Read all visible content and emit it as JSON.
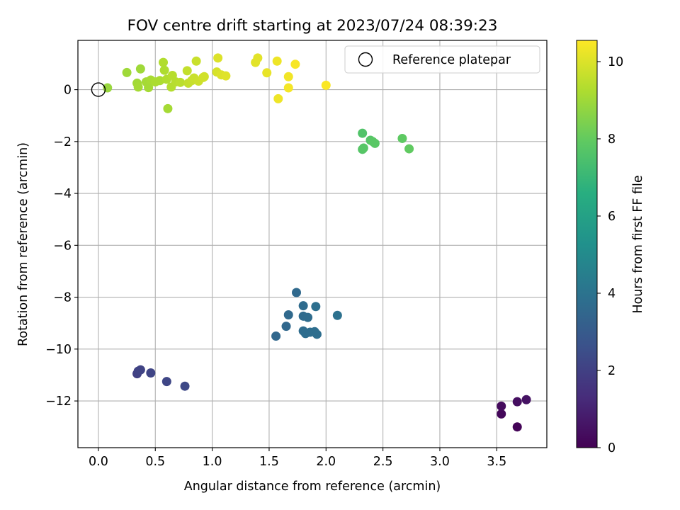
{
  "chart_data": {
    "type": "scatter",
    "title": "FOV centre drift starting at 2023/07/24 08:39:23",
    "xlabel": "Angular distance from reference (arcmin)",
    "ylabel": "Rotation from reference (arcmin)",
    "xlim": [
      -0.18,
      3.94
    ],
    "ylim": [
      -13.8,
      1.9
    ],
    "x_ticks": [
      0.0,
      0.5,
      1.0,
      1.5,
      2.0,
      2.5,
      3.0,
      3.5
    ],
    "x_tick_labels": [
      "0.0",
      "0.5",
      "1.0",
      "1.5",
      "2.0",
      "2.5",
      "3.0",
      "3.5"
    ],
    "y_ticks": [
      0,
      -2,
      -4,
      -6,
      -8,
      -10,
      -12
    ],
    "y_tick_labels": [
      "0",
      "−2",
      "−4",
      "−6",
      "−8",
      "−10",
      "−12"
    ],
    "grid": true,
    "colormap": "viridis",
    "colorbar": {
      "label": "Hours from first FF file",
      "range": [
        0,
        10.55
      ],
      "ticks": [
        0,
        2,
        4,
        6,
        8,
        10
      ],
      "tick_labels": [
        "0",
        "2",
        "4",
        "6",
        "8",
        "10"
      ]
    },
    "legend": {
      "position": "upper-right",
      "entries": [
        {
          "label": "Reference platepar",
          "marker": "open-circle",
          "x": 0.0,
          "y": 0.0
        }
      ]
    },
    "points": [
      {
        "x": 3.68,
        "y": -13.0,
        "hours": 0.1
      },
      {
        "x": 3.54,
        "y": -12.5,
        "hours": 0.2
      },
      {
        "x": 3.54,
        "y": -12.2,
        "hours": 0.3
      },
      {
        "x": 3.68,
        "y": -12.03,
        "hours": 0.4
      },
      {
        "x": 3.76,
        "y": -11.95,
        "hours": 0.5
      },
      {
        "x": 0.34,
        "y": -10.95,
        "hours": 2.0
      },
      {
        "x": 0.35,
        "y": -10.85,
        "hours": 2.05
      },
      {
        "x": 0.37,
        "y": -10.8,
        "hours": 2.1
      },
      {
        "x": 0.46,
        "y": -10.92,
        "hours": 2.15
      },
      {
        "x": 0.6,
        "y": -11.25,
        "hours": 2.2
      },
      {
        "x": 0.76,
        "y": -11.43,
        "hours": 2.3
      },
      {
        "x": 1.56,
        "y": -9.5,
        "hours": 3.5
      },
      {
        "x": 1.65,
        "y": -9.12,
        "hours": 3.55
      },
      {
        "x": 1.67,
        "y": -8.68,
        "hours": 3.6
      },
      {
        "x": 1.74,
        "y": -7.82,
        "hours": 3.6
      },
      {
        "x": 1.8,
        "y": -8.33,
        "hours": 3.65
      },
      {
        "x": 1.8,
        "y": -8.73,
        "hours": 3.65
      },
      {
        "x": 1.84,
        "y": -8.78,
        "hours": 3.7
      },
      {
        "x": 1.8,
        "y": -9.3,
        "hours": 3.7
      },
      {
        "x": 1.82,
        "y": -9.4,
        "hours": 3.75
      },
      {
        "x": 1.86,
        "y": -9.35,
        "hours": 3.75
      },
      {
        "x": 1.9,
        "y": -9.33,
        "hours": 3.8
      },
      {
        "x": 1.92,
        "y": -9.43,
        "hours": 3.8
      },
      {
        "x": 1.91,
        "y": -8.36,
        "hours": 3.85
      },
      {
        "x": 2.1,
        "y": -8.7,
        "hours": 3.9
      },
      {
        "x": 2.32,
        "y": -1.68,
        "hours": 7.6
      },
      {
        "x": 2.32,
        "y": -2.3,
        "hours": 7.7
      },
      {
        "x": 2.33,
        "y": -2.25,
        "hours": 7.75
      },
      {
        "x": 2.39,
        "y": -1.95,
        "hours": 7.7
      },
      {
        "x": 2.41,
        "y": -2.0,
        "hours": 7.8
      },
      {
        "x": 2.43,
        "y": -2.07,
        "hours": 7.8
      },
      {
        "x": 2.67,
        "y": -1.88,
        "hours": 7.9
      },
      {
        "x": 2.73,
        "y": -2.28,
        "hours": 7.95
      },
      {
        "x": 0.08,
        "y": 0.07,
        "hours": 8.9
      },
      {
        "x": 0.25,
        "y": 0.66,
        "hours": 9.0
      },
      {
        "x": 0.34,
        "y": 0.25,
        "hours": 9.05
      },
      {
        "x": 0.35,
        "y": 0.1,
        "hours": 9.1
      },
      {
        "x": 0.37,
        "y": 0.8,
        "hours": 9.0
      },
      {
        "x": 0.42,
        "y": 0.3,
        "hours": 9.1
      },
      {
        "x": 0.44,
        "y": 0.08,
        "hours": 9.1
      },
      {
        "x": 0.46,
        "y": 0.37,
        "hours": 9.15
      },
      {
        "x": 0.5,
        "y": 0.3,
        "hours": 9.2
      },
      {
        "x": 0.54,
        "y": 0.35,
        "hours": 9.2
      },
      {
        "x": 0.57,
        "y": 1.05,
        "hours": 9.3
      },
      {
        "x": 0.58,
        "y": 0.75,
        "hours": 9.25
      },
      {
        "x": 0.6,
        "y": 0.4,
        "hours": 9.3
      },
      {
        "x": 0.61,
        "y": -0.73,
        "hours": 9.1
      },
      {
        "x": 0.64,
        "y": 0.1,
        "hours": 9.35
      },
      {
        "x": 0.65,
        "y": 0.55,
        "hours": 9.4
      },
      {
        "x": 0.68,
        "y": 0.3,
        "hours": 9.4
      },
      {
        "x": 0.72,
        "y": 0.28,
        "hours": 9.45
      },
      {
        "x": 0.78,
        "y": 0.73,
        "hours": 9.6
      },
      {
        "x": 0.79,
        "y": 0.25,
        "hours": 9.6
      },
      {
        "x": 0.82,
        "y": 0.35,
        "hours": 9.65
      },
      {
        "x": 0.84,
        "y": 0.45,
        "hours": 9.7
      },
      {
        "x": 0.86,
        "y": 1.1,
        "hours": 9.7
      },
      {
        "x": 0.88,
        "y": 0.33,
        "hours": 9.75
      },
      {
        "x": 0.92,
        "y": 0.47,
        "hours": 9.8
      },
      {
        "x": 0.93,
        "y": 0.5,
        "hours": 9.8
      },
      {
        "x": 1.04,
        "y": 0.68,
        "hours": 9.9
      },
      {
        "x": 1.05,
        "y": 1.22,
        "hours": 10.0
      },
      {
        "x": 1.08,
        "y": 0.57,
        "hours": 10.0
      },
      {
        "x": 1.12,
        "y": 0.53,
        "hours": 10.05
      },
      {
        "x": 1.38,
        "y": 1.05,
        "hours": 10.1
      },
      {
        "x": 1.4,
        "y": 1.22,
        "hours": 10.1
      },
      {
        "x": 1.48,
        "y": 0.65,
        "hours": 10.2
      },
      {
        "x": 1.57,
        "y": 1.1,
        "hours": 10.3
      },
      {
        "x": 1.58,
        "y": -0.35,
        "hours": 10.3
      },
      {
        "x": 1.67,
        "y": 0.5,
        "hours": 10.35
      },
      {
        "x": 1.67,
        "y": 0.07,
        "hours": 10.4
      },
      {
        "x": 1.73,
        "y": 0.98,
        "hours": 10.45
      },
      {
        "x": 2.0,
        "y": 0.17,
        "hours": 10.5
      }
    ]
  }
}
